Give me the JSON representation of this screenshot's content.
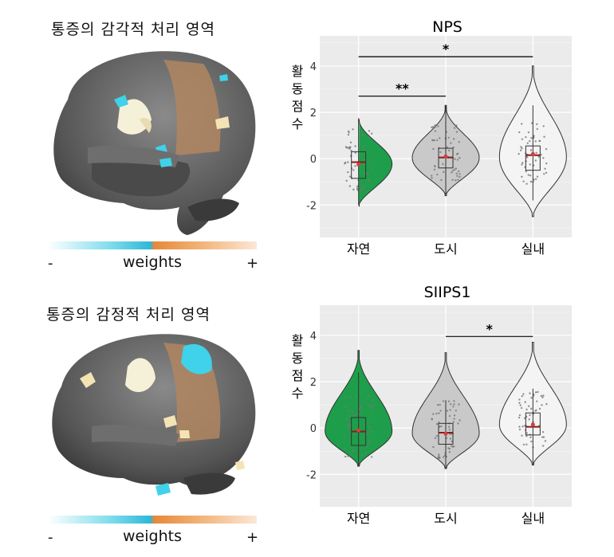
{
  "brain_panels": [
    {
      "title": "통증의 감각적 처리 영역",
      "colorbar": {
        "label": "weights",
        "minus": "-",
        "plus": "+"
      }
    },
    {
      "title": "통증의 감정적 처리 영역",
      "colorbar": {
        "label": "weights",
        "minus": "-",
        "plus": "+"
      }
    }
  ],
  "colors": {
    "nature": "#1e9e4a",
    "city": "#c9c9c9",
    "indoor": "#f4f4f4",
    "panel_bg": "#ebebeb",
    "cmap_cyan": "#5fd3e6",
    "cmap_orange": "#e6893a"
  },
  "chart_data": [
    {
      "type": "violin",
      "title": "NPS",
      "ylabel": "활동점수",
      "ylabel_chars": [
        "활",
        "동",
        "점",
        "수"
      ],
      "categories": [
        "자연",
        "도시",
        "실내"
      ],
      "yticks": [
        -2,
        0,
        2,
        4
      ],
      "ylim": [
        -3.4,
        5.3
      ],
      "series": [
        {
          "category": "자연",
          "median": -0.15,
          "q1": -0.85,
          "q3": 0.3,
          "wmin": -2.0,
          "wmax": 1.75,
          "mean": -0.25,
          "vmin": -2.05,
          "vmax": 1.8
        },
        {
          "category": "도시",
          "median": 0.05,
          "q1": -0.4,
          "q3": 0.45,
          "wmin": -1.55,
          "wmax": 2.3,
          "mean": 0.1,
          "vmin": -1.6,
          "vmax": 2.3
        },
        {
          "category": "실내",
          "median": 0.15,
          "q1": -0.5,
          "q3": 0.55,
          "wmin": -1.8,
          "wmax": 2.3,
          "mean": 0.2,
          "vmin": -2.5,
          "vmax": 4.0
        }
      ],
      "significance": [
        {
          "from": "자연",
          "to": "도시",
          "label": "**",
          "y": 2.7
        },
        {
          "from": "자연",
          "to": "실내",
          "label": "*",
          "y": 4.4
        }
      ]
    },
    {
      "type": "violin",
      "title": "SIIPS1",
      "ylabel": "활동점수",
      "ylabel_chars": [
        "활",
        "동",
        "점",
        "수"
      ],
      "categories": [
        "자연",
        "도시",
        "실내"
      ],
      "yticks": [
        -2,
        0,
        2,
        4
      ],
      "ylim": [
        -3.4,
        5.3
      ],
      "series": [
        {
          "category": "자연",
          "median": -0.15,
          "q1": -0.75,
          "q3": 0.45,
          "wmin": -1.65,
          "wmax": 2.4,
          "mean": -0.1,
          "vmin": -1.65,
          "vmax": 3.35
        },
        {
          "category": "도시",
          "median": -0.2,
          "q1": -0.7,
          "q3": 0.2,
          "wmin": -1.75,
          "wmax": 1.2,
          "mean": -0.25,
          "vmin": -1.75,
          "vmax": 3.25
        },
        {
          "category": "실내",
          "median": 0.05,
          "q1": -0.3,
          "q3": 0.65,
          "wmin": -1.6,
          "wmax": 1.7,
          "mean": 0.15,
          "vmin": -1.6,
          "vmax": 3.7
        }
      ],
      "significance": [
        {
          "from": "도시",
          "to": "실내",
          "label": "*",
          "y": 3.95
        }
      ]
    }
  ]
}
